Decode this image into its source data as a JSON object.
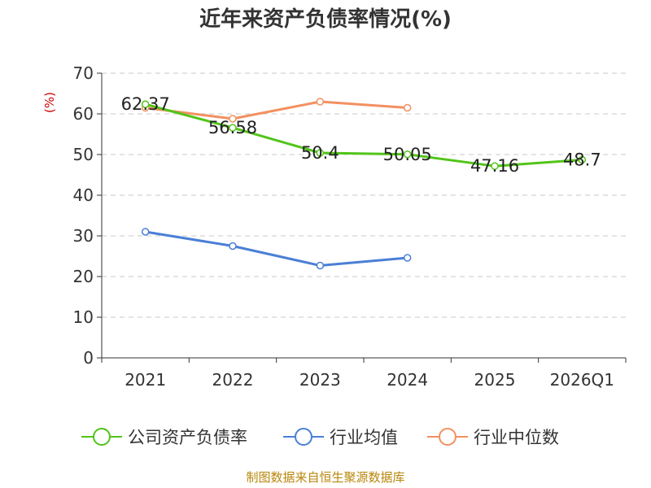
{
  "chart_data": {
    "type": "line",
    "title": "近年来资产负债率情况(%)",
    "ylabel": "(%)",
    "xlabel": "",
    "ylim": [
      0,
      70
    ],
    "yticks": [
      0,
      10,
      20,
      30,
      40,
      50,
      60,
      70
    ],
    "categories": [
      "2021",
      "2022",
      "2023",
      "2024",
      "2025",
      "2026Q1"
    ],
    "grid": true,
    "legend_position": "bottom",
    "series": [
      {
        "name": "公司资产负债率",
        "color": "#52c41a",
        "values": [
          62.37,
          56.58,
          50.4,
          50.05,
          47.16,
          48.7
        ],
        "labels": [
          "62.37",
          "56.58",
          "50.4",
          "50.05",
          "47.16",
          "48.7"
        ]
      },
      {
        "name": "行业均值",
        "color": "#4a7fd6",
        "values": [
          31.0,
          27.5,
          22.7,
          24.6,
          null,
          null
        ]
      },
      {
        "name": "行业中位数",
        "color": "#f39060",
        "values": [
          61.5,
          58.8,
          63.0,
          61.5,
          null,
          null
        ]
      }
    ]
  },
  "source_text": "制图数据来自恒生聚源数据库"
}
